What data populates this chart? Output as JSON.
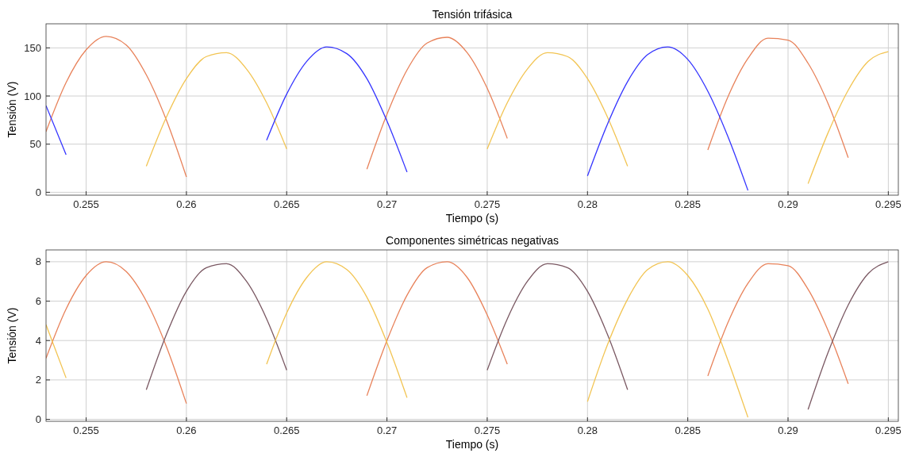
{
  "chart_data": [
    {
      "type": "line",
      "title": "Tensión trifásica",
      "xlabel": "Tiempo (s)",
      "ylabel": "Tensión (V)",
      "grid": true,
      "x": [
        0.253,
        0.254,
        0.255,
        0.256,
        0.257,
        0.258,
        0.259,
        0.26,
        0.261,
        0.262,
        0.263,
        0.264,
        0.265,
        0.266,
        0.267,
        0.268,
        0.269,
        0.27,
        0.271,
        0.272,
        0.273,
        0.274,
        0.275,
        0.276,
        0.277,
        0.278,
        0.279,
        0.28,
        0.281,
        0.282,
        0.283,
        0.284,
        0.285,
        0.286,
        0.287,
        0.288,
        0.289,
        0.29,
        0.291,
        0.292,
        0.293,
        0.294,
        0.295
      ],
      "xlim": [
        0.253,
        0.2955
      ],
      "xticks": [
        0.255,
        0.26,
        0.265,
        0.27,
        0.275,
        0.28,
        0.285,
        0.29,
        0.295
      ],
      "ylim": [
        -3,
        175
      ],
      "yticks": [
        0,
        50,
        100,
        150
      ],
      "series": [
        {
          "color": "#e8825a",
          "values": [
            63,
            114,
            148,
            162,
            153,
            122,
            75,
            16,
            null,
            null,
            null,
            null,
            null,
            null,
            null,
            null,
            24,
            81,
            127,
            155,
            161,
            145,
            108,
            56,
            null,
            null,
            null,
            null,
            null,
            null,
            null,
            null,
            null,
            44,
            99,
            139,
            160,
            158,
            134,
            92,
            36,
            null,
            null
          ]
        },
        {
          "color": "#f2c452",
          "values": [
            null,
            null,
            null,
            null,
            null,
            27,
            78,
            118,
            141,
            145,
            128,
            93,
            45,
            null,
            null,
            null,
            null,
            null,
            null,
            null,
            null,
            null,
            45,
            93,
            128,
            145,
            141,
            118,
            78,
            27,
            null,
            null,
            null,
            null,
            null,
            null,
            null,
            null,
            9,
            62,
            106,
            136,
            146
          ]
        },
        {
          "color": "#3535ff",
          "values": [
            90,
            39,
            null,
            null,
            null,
            null,
            null,
            null,
            null,
            null,
            null,
            54,
            102,
            136,
            151,
            144,
            118,
            74,
            21,
            null,
            null,
            null,
            null,
            null,
            null,
            null,
            null,
            17,
            71,
            115,
            143,
            151,
            138,
            105,
            58,
            2,
            null,
            null,
            null,
            null,
            null,
            null,
            null
          ]
        }
      ]
    },
    {
      "type": "line",
      "title": "Componentes simétricas negativas",
      "xlabel": "Tiempo (s)",
      "ylabel": "Tensión (V)",
      "grid": true,
      "x": [
        0.253,
        0.254,
        0.255,
        0.256,
        0.257,
        0.258,
        0.259,
        0.26,
        0.261,
        0.262,
        0.263,
        0.264,
        0.265,
        0.266,
        0.267,
        0.268,
        0.269,
        0.27,
        0.271,
        0.272,
        0.273,
        0.274,
        0.275,
        0.276,
        0.277,
        0.278,
        0.279,
        0.28,
        0.281,
        0.282,
        0.283,
        0.284,
        0.285,
        0.286,
        0.287,
        0.288,
        0.289,
        0.29,
        0.291,
        0.292,
        0.293,
        0.294,
        0.295
      ],
      "xlim": [
        0.253,
        0.2955
      ],
      "xticks": [
        0.255,
        0.26,
        0.265,
        0.27,
        0.275,
        0.28,
        0.285,
        0.29,
        0.295
      ],
      "ylim": [
        -0.1,
        8.6
      ],
      "yticks": [
        0,
        2,
        4,
        6,
        8
      ],
      "series": [
        {
          "color": "#e8825a",
          "values": [
            3.1,
            5.6,
            7.3,
            8.0,
            7.5,
            6.0,
            3.7,
            0.8,
            null,
            null,
            null,
            null,
            null,
            null,
            null,
            null,
            1.2,
            4.0,
            6.3,
            7.7,
            8.0,
            7.2,
            5.3,
            2.8,
            null,
            null,
            null,
            null,
            null,
            null,
            null,
            null,
            null,
            2.2,
            4.9,
            6.9,
            7.9,
            7.8,
            6.6,
            4.5,
            1.8,
            null,
            null
          ]
        },
        {
          "color": "#7a5862",
          "values": [
            null,
            null,
            null,
            null,
            null,
            1.5,
            4.3,
            6.5,
            7.7,
            7.9,
            7.0,
            5.1,
            2.5,
            null,
            null,
            null,
            null,
            null,
            null,
            null,
            null,
            null,
            2.5,
            5.1,
            7.0,
            7.9,
            7.7,
            6.5,
            4.3,
            1.5,
            null,
            null,
            null,
            null,
            null,
            null,
            null,
            null,
            0.5,
            3.4,
            5.8,
            7.4,
            8.0
          ]
        },
        {
          "color": "#f2c452",
          "values": [
            4.8,
            2.1,
            null,
            null,
            null,
            null,
            null,
            null,
            null,
            null,
            null,
            2.8,
            5.4,
            7.2,
            8.0,
            7.6,
            6.2,
            3.9,
            1.1,
            null,
            null,
            null,
            null,
            null,
            null,
            null,
            null,
            0.9,
            3.8,
            6.1,
            7.6,
            8.0,
            7.3,
            5.6,
            3.0,
            0.1,
            null,
            null,
            null,
            null,
            null,
            null,
            null
          ]
        }
      ]
    }
  ]
}
